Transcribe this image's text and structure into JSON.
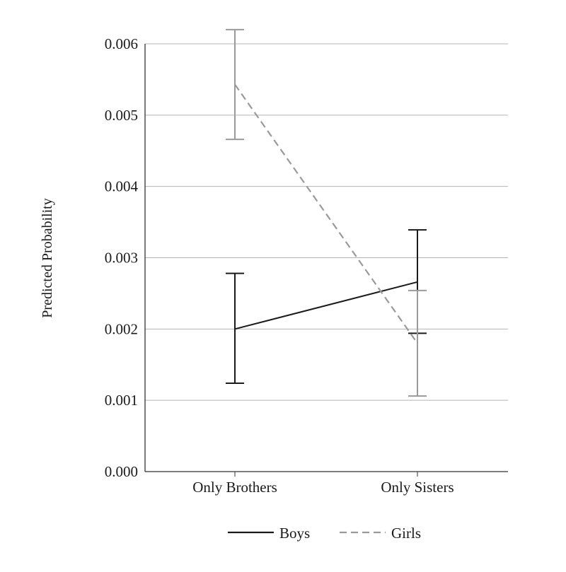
{
  "chart_data": {
    "type": "line",
    "title": "",
    "xlabel": "",
    "ylabel": "Predicted Probability",
    "categories": [
      "Only Brothers",
      "Only Sisters"
    ],
    "ylim": [
      0,
      0.006
    ],
    "yticks": [
      "0.000",
      "0.001",
      "0.002",
      "0.003",
      "0.004",
      "0.005",
      "0.006"
    ],
    "grid": true,
    "legend_position": "bottom",
    "series": [
      {
        "name": "Boys",
        "values": [
          0.002,
          0.00266
        ],
        "ci_low": [
          0.00124,
          0.00194
        ],
        "ci_high": [
          0.00278,
          0.00339
        ],
        "color": "#1a1a1a",
        "dash": false
      },
      {
        "name": "Girls",
        "values": [
          0.00543,
          0.0018
        ],
        "ci_low": [
          0.00466,
          0.00106
        ],
        "ci_high": [
          0.0062,
          0.00254
        ],
        "color": "#9a9a9a",
        "dash": true
      }
    ]
  }
}
